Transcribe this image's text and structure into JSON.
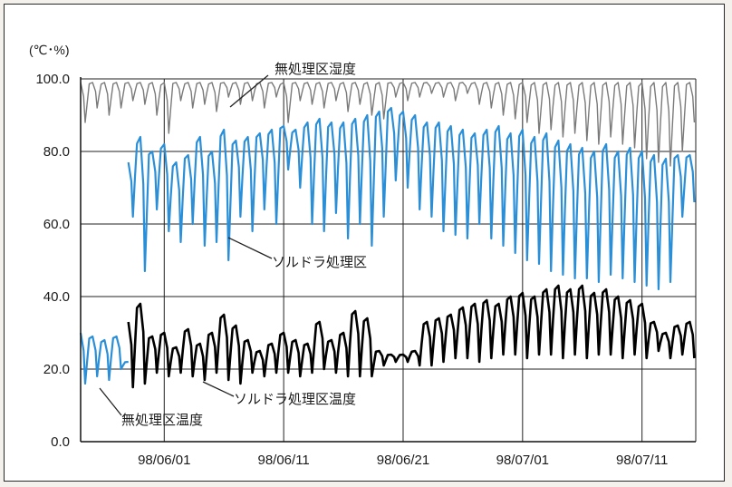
{
  "chart_data": {
    "type": "line",
    "unit_label": "(℃･%)",
    "ylim": [
      0,
      100
    ],
    "y_ticks": [
      "0.0",
      "20.0",
      "40.0",
      "60.0",
      "80.0",
      "100.0"
    ],
    "x_tick_labels": [
      "98/06/01",
      "98/06/11",
      "98/06/21",
      "98/07/01",
      "98/07/11"
    ],
    "x_tick_day_index": [
      7,
      17,
      27,
      37,
      47
    ],
    "x_range_days": [
      0,
      51.5
    ],
    "grid": true,
    "annotations": [
      {
        "text": "無処理区湿度",
        "series": "untreated_humidity"
      },
      {
        "text": "ソルドラ処理区",
        "series": "soldora_humidity"
      },
      {
        "text": "ソルドラ処理区温度",
        "series": "soldora_temperature"
      },
      {
        "text": "無処理区温度",
        "series": "untreated_temperature"
      }
    ],
    "series": [
      {
        "key": "untreated_humidity",
        "color": "#7a7a7a",
        "days": [
          0,
          51.5
        ],
        "daily_high": [
          99,
          99,
          99,
          99,
          99,
          99,
          99,
          99,
          99,
          99,
          99,
          99,
          99,
          99,
          99,
          99,
          99,
          99,
          99,
          99,
          99,
          99,
          99,
          99,
          99,
          99,
          99,
          99,
          99,
          99,
          99,
          99,
          99,
          99,
          99,
          99,
          99,
          99,
          99,
          99,
          99,
          99,
          99,
          99,
          99,
          99,
          99,
          99,
          99,
          99,
          99,
          99
        ],
        "daily_low": [
          88,
          92,
          90,
          92,
          94,
          93,
          90,
          85,
          94,
          92,
          93,
          91,
          95,
          93,
          94,
          92,
          95,
          88,
          94,
          93,
          92,
          94,
          91,
          93,
          90,
          89,
          95,
          94,
          95,
          96,
          95,
          94,
          96,
          93,
          92,
          90,
          89,
          88,
          85,
          86,
          84,
          85,
          83,
          82,
          84,
          82,
          81,
          78,
          77,
          76,
          80,
          88
        ]
      },
      {
        "key": "soldora_humidity",
        "color": "#2b8fd8",
        "days": [
          4,
          51.5
        ],
        "daily_high": [
          null,
          null,
          null,
          null,
          77,
          84,
          80,
          82,
          77,
          79,
          84,
          80,
          86,
          83,
          84,
          85,
          86,
          87,
          86,
          88,
          89,
          88,
          88,
          89,
          90,
          91,
          92,
          91,
          90,
          88,
          88,
          87,
          86,
          85,
          86,
          87,
          85,
          86,
          84,
          85,
          83,
          82,
          81,
          80,
          82,
          80,
          81,
          80,
          79,
          78,
          79,
          79
        ],
        "daily_low": [
          null,
          null,
          null,
          null,
          62,
          47,
          64,
          58,
          55,
          60,
          54,
          55,
          50,
          62,
          58,
          64,
          60,
          75,
          70,
          60,
          58,
          63,
          56,
          60,
          54,
          62,
          72,
          70,
          64,
          62,
          58,
          57,
          56,
          60,
          56,
          54,
          52,
          50,
          49,
          47,
          46,
          45,
          45,
          44,
          46,
          45,
          44,
          43,
          42,
          44,
          62,
          66
        ]
      },
      {
        "key": "soldora_temperature",
        "color": "#000000",
        "days": [
          4,
          51.5
        ],
        "daily_high": [
          null,
          null,
          null,
          null,
          33,
          38,
          29,
          30,
          26,
          31,
          27,
          30,
          35,
          32,
          28,
          25,
          27,
          30,
          28,
          27,
          33,
          28,
          30,
          36,
          34,
          25,
          24,
          24,
          25,
          33,
          34,
          35,
          37,
          38,
          39,
          38,
          40,
          41,
          40,
          42,
          43,
          42,
          43,
          41,
          42,
          40,
          39,
          38,
          33,
          30,
          32,
          33
        ],
        "daily_low": [
          null,
          null,
          null,
          null,
          15,
          16,
          19,
          18,
          19,
          18,
          17,
          19,
          17,
          16,
          19,
          18,
          19,
          19,
          18,
          19,
          20,
          19,
          18,
          18,
          18,
          21,
          22,
          22,
          21,
          21,
          22,
          23,
          23,
          22,
          23,
          24,
          24,
          23,
          24,
          24,
          23,
          24,
          23,
          24,
          24,
          23,
          24,
          23,
          25,
          23,
          24,
          23
        ]
      },
      {
        "key": "untreated_temperature",
        "color": "#2b8fd8",
        "days": [
          0,
          4
        ],
        "daily_high": [
          30,
          29,
          28,
          29,
          22
        ],
        "daily_low": [
          16,
          18,
          17,
          20,
          20
        ]
      }
    ]
  }
}
